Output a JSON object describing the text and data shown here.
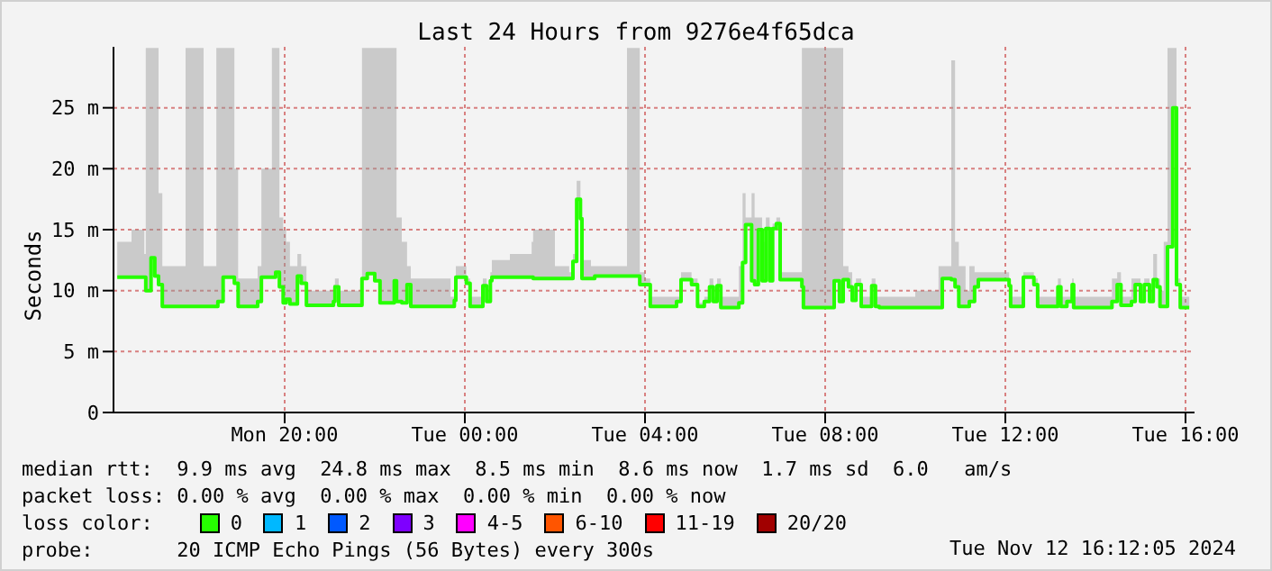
{
  "chart_data": {
    "type": "step",
    "title": "Last 24 Hours from 9276e4f65dca",
    "ylabel": "Seconds",
    "legend_title": "loss color:",
    "legend": "bottom",
    "grid": true,
    "marker": "none",
    "xlim": [
      "2024-11-11T16:12",
      "2024-11-12T16:12"
    ],
    "xticks": [
      {
        "value": "2024-11-11T20:00",
        "label": "Mon 20:00"
      },
      {
        "value": "2024-11-12T00:00",
        "label": "Tue 00:00"
      },
      {
        "value": "2024-11-12T04:00",
        "label": "Tue 04:00"
      },
      {
        "value": "2024-11-12T08:00",
        "label": "Tue 08:00"
      },
      {
        "value": "2024-11-12T12:00",
        "label": "Tue 12:00"
      },
      {
        "value": "2024-11-12T16:00",
        "label": "Tue 16:00"
      }
    ],
    "ylim": [
      0,
      30
    ],
    "yticks": [
      0,
      {
        "value": 5,
        "label": "5 m"
      },
      {
        "value": 10,
        "label": "10 m"
      },
      {
        "value": 15,
        "label": "15 m"
      },
      {
        "value": 20,
        "label": "20 m"
      },
      {
        "value": 25,
        "label": "25 m"
      }
    ],
    "x": [
      "2024-11-11T16:17",
      "2024-11-11T16:36",
      "2024-11-11T16:53",
      "2024-11-11T16:55",
      "2024-11-11T17:02",
      "2024-11-11T17:07",
      "2024-11-11T17:12",
      "2024-11-11T17:17",
      "2024-11-11T17:36",
      "2024-11-11T17:48",
      "2024-11-11T17:58",
      "2024-11-11T18:12",
      "2024-11-11T18:29",
      "2024-11-11T18:31",
      "2024-11-11T18:38",
      "2024-11-11T18:48",
      "2024-11-11T18:53",
      "2024-11-11T18:58",
      "2024-11-11T19:19",
      "2024-11-11T19:24",
      "2024-11-11T19:29",
      "2024-11-11T19:43",
      "2024-11-11T19:48",
      "2024-11-11T19:53",
      "2024-11-11T19:58",
      "2024-11-11T20:02",
      "2024-11-11T20:07",
      "2024-11-11T20:17",
      "2024-11-11T20:22",
      "2024-11-11T20:29",
      "2024-11-11T21:00",
      "2024-11-11T21:05",
      "2024-11-11T21:07",
      "2024-11-11T21:12",
      "2024-11-11T21:36",
      "2024-11-11T21:43",
      "2024-11-11T21:50",
      "2024-11-11T22:00",
      "2024-11-11T22:07",
      "2024-11-11T22:17",
      "2024-11-11T22:26",
      "2024-11-11T22:29",
      "2024-11-11T22:36",
      "2024-11-11T22:43",
      "2024-11-11T22:48",
      "2024-11-11T23:24",
      "2024-11-11T23:41",
      "2024-11-11T23:46",
      "2024-11-11T23:48",
      "2024-11-12T00:00",
      "2024-11-12T00:02",
      "2024-11-12T00:07",
      "2024-11-12T00:19",
      "2024-11-12T00:24",
      "2024-11-12T00:29",
      "2024-11-12T00:34",
      "2024-11-12T00:36",
      "2024-11-12T01:00",
      "2024-11-12T01:29",
      "2024-11-12T01:31",
      "2024-11-12T02:00",
      "2024-11-12T02:19",
      "2024-11-12T02:24",
      "2024-11-12T02:29",
      "2024-11-12T02:34",
      "2024-11-12T02:36",
      "2024-11-12T02:48",
      "2024-11-12T02:53",
      "2024-11-12T03:12",
      "2024-11-12T03:36",
      "2024-11-12T03:43",
      "2024-11-12T03:53",
      "2024-11-12T04:00",
      "2024-11-12T04:07",
      "2024-11-12T04:36",
      "2024-11-12T04:42",
      "2024-11-12T04:48",
      "2024-11-12T04:55",
      "2024-11-12T05:02",
      "2024-11-12T05:10",
      "2024-11-12T05:14",
      "2024-11-12T05:19",
      "2024-11-12T05:26",
      "2024-11-12T05:31",
      "2024-11-12T05:36",
      "2024-11-12T05:41",
      "2024-11-12T06:00",
      "2024-11-12T06:05",
      "2024-11-12T06:10",
      "2024-11-12T06:14",
      "2024-11-12T06:22",
      "2024-11-12T06:26",
      "2024-11-12T06:31",
      "2024-11-12T06:36",
      "2024-11-12T06:41",
      "2024-11-12T06:46",
      "2024-11-12T06:50",
      "2024-11-12T06:55",
      "2024-11-12T07:00",
      "2024-11-12T07:24",
      "2024-11-12T07:29",
      "2024-11-12T07:31",
      "2024-11-12T08:07",
      "2024-11-12T08:12",
      "2024-11-12T08:19",
      "2024-11-12T08:24",
      "2024-11-12T08:31",
      "2024-11-12T08:36",
      "2024-11-12T08:41",
      "2024-11-12T08:48",
      "2024-11-12T08:55",
      "2024-11-12T09:02",
      "2024-11-12T09:07",
      "2024-11-12T09:12",
      "2024-11-12T10:00",
      "2024-11-12T10:31",
      "2024-11-12T10:36",
      "2024-11-12T10:48",
      "2024-11-12T10:53",
      "2024-11-12T10:58",
      "2024-11-12T11:07",
      "2024-11-12T11:12",
      "2024-11-12T11:19",
      "2024-11-12T11:24",
      "2024-11-12T12:00",
      "2024-11-12T12:05",
      "2024-11-12T12:07",
      "2024-11-12T12:17",
      "2024-11-12T12:24",
      "2024-11-12T12:31",
      "2024-11-12T12:38",
      "2024-11-12T12:43",
      "2024-11-12T13:00",
      "2024-11-12T13:10",
      "2024-11-12T13:14",
      "2024-11-12T13:22",
      "2024-11-12T13:29",
      "2024-11-12T13:31",
      "2024-11-12T14:17",
      "2024-11-12T14:22",
      "2024-11-12T14:29",
      "2024-11-12T14:34",
      "2024-11-12T14:41",
      "2024-11-12T14:48",
      "2024-11-12T14:53",
      "2024-11-12T15:00",
      "2024-11-12T15:05",
      "2024-11-12T15:12",
      "2024-11-12T15:17",
      "2024-11-12T15:22",
      "2024-11-12T15:26",
      "2024-11-12T15:31",
      "2024-11-12T15:36",
      "2024-11-12T15:43",
      "2024-11-12T15:48",
      "2024-11-12T15:53",
      "2024-11-12T16:05"
    ],
    "series": [
      {
        "name": "0",
        "color": "#26ff00",
        "values": [
          11.1,
          11.1,
          11.1,
          10.0,
          12.7,
          11.2,
          10.5,
          8.7,
          8.7,
          8.7,
          8.7,
          8.7,
          8.7,
          9.1,
          11.1,
          11.1,
          10.6,
          8.7,
          8.7,
          9.1,
          11.1,
          11.1,
          11.5,
          10.3,
          9.0,
          9.3,
          8.9,
          11.2,
          10.6,
          8.8,
          8.8,
          9.1,
          10.3,
          8.8,
          8.8,
          11.0,
          11.4,
          10.8,
          9.0,
          9.0,
          10.8,
          9.1,
          9.0,
          10.5,
          8.7,
          8.7,
          8.7,
          9.2,
          11.1,
          11.1,
          10.6,
          8.7,
          8.7,
          10.4,
          9.1,
          10.8,
          11.1,
          11.1,
          11.1,
          11.0,
          11.0,
          11.0,
          12.4,
          17.5,
          15.9,
          11.0,
          11.0,
          11.2,
          11.2,
          11.2,
          11.2,
          10.5,
          10.5,
          8.7,
          8.7,
          9.1,
          10.9,
          10.9,
          10.5,
          8.7,
          8.7,
          9.1,
          10.3,
          9.1,
          10.4,
          8.6,
          8.6,
          9.0,
          12.3,
          15.4,
          10.8,
          10.5,
          15.0,
          10.8,
          15.1,
          10.8,
          15.1,
          15.5,
          10.9,
          10.9,
          10.3,
          8.6,
          8.6,
          10.8,
          9.1,
          10.9,
          10.3,
          9.2,
          10.5,
          8.7,
          8.7,
          10.4,
          8.7,
          8.6,
          8.6,
          8.6,
          11.0,
          10.9,
          10.3,
          8.7,
          8.7,
          9.1,
          10.3,
          10.9,
          10.9,
          10.4,
          8.7,
          8.7,
          11.1,
          11.1,
          10.5,
          8.7,
          8.7,
          10.3,
          8.7,
          9.1,
          10.5,
          8.6,
          8.6,
          9.1,
          10.5,
          8.8,
          8.8,
          9.1,
          10.5,
          9.1,
          10.5,
          9.1,
          10.9,
          10.3,
          8.7,
          8.7,
          13.6,
          25.0,
          10.5,
          8.6,
          8.6
        ],
        "lower": [
          11.1,
          11.1,
          11.1,
          10.0,
          12.7,
          11.2,
          10.5,
          8.7,
          8.7,
          8.7,
          8.7,
          8.7,
          8.7,
          9.1,
          11.1,
          11.1,
          10.6,
          8.7,
          8.7,
          9.1,
          11.1,
          11.1,
          11.5,
          10.3,
          9.0,
          9.3,
          8.9,
          11.2,
          10.6,
          8.8,
          8.8,
          9.1,
          10.3,
          8.8,
          8.8,
          11.0,
          11.4,
          10.8,
          9.0,
          9.0,
          10.8,
          9.1,
          9.0,
          10.5,
          8.7,
          8.7,
          8.7,
          9.2,
          11.1,
          11.1,
          10.6,
          8.7,
          8.7,
          10.4,
          9.1,
          10.8,
          11.1,
          11.1,
          11.1,
          11.0,
          11.0,
          11.0,
          12.4,
          17.5,
          15.9,
          11.0,
          11.0,
          11.2,
          11.2,
          11.2,
          11.2,
          10.5,
          10.5,
          8.7,
          8.7,
          9.1,
          10.9,
          10.9,
          10.5,
          8.7,
          8.7,
          9.1,
          10.3,
          9.1,
          10.4,
          8.6,
          8.6,
          9.0,
          12.3,
          15.4,
          10.8,
          10.5,
          15.0,
          10.8,
          15.1,
          10.8,
          15.1,
          15.5,
          10.9,
          10.9,
          10.3,
          8.6,
          8.6,
          10.8,
          9.1,
          10.9,
          10.3,
          9.2,
          10.5,
          8.7,
          8.7,
          10.4,
          8.7,
          8.6,
          8.6,
          8.6,
          11.0,
          10.9,
          10.3,
          8.7,
          8.7,
          9.1,
          10.3,
          10.9,
          10.9,
          10.4,
          8.7,
          8.7,
          11.1,
          11.1,
          10.5,
          8.7,
          8.7,
          10.3,
          8.7,
          9.1,
          10.5,
          8.6,
          8.6,
          9.1,
          10.5,
          8.8,
          8.8,
          9.1,
          10.5,
          9.1,
          10.5,
          9.1,
          10.9,
          10.3,
          8.7,
          8.7,
          13.6,
          25.0,
          10.5,
          8.6,
          8.6
        ],
        "upper": [
          14,
          15,
          13,
          29.9,
          29.9,
          29.9,
          18,
          12,
          12,
          29.9,
          29.9,
          12,
          29.9,
          29.9,
          29.9,
          29.9,
          20,
          11,
          11,
          12,
          20,
          29.9,
          29.9,
          16,
          15,
          14,
          12,
          13,
          12,
          10,
          10,
          10.5,
          11,
          10,
          10,
          29.9,
          29.9,
          29.9,
          29.9,
          29.9,
          29.9,
          16,
          14,
          12,
          11,
          11,
          9.5,
          10,
          12,
          12,
          11,
          9.5,
          9.5,
          11,
          10,
          11.5,
          12.5,
          13,
          14,
          15,
          12,
          11.5,
          13,
          19,
          17,
          12.5,
          12,
          12,
          12,
          29.9,
          29.9,
          11.5,
          11,
          9.5,
          9.5,
          9.5,
          11.5,
          11.5,
          11,
          9,
          9,
          9.5,
          11,
          9.5,
          11,
          9.5,
          9.5,
          12,
          18,
          16,
          18,
          16,
          16,
          14,
          16,
          11.5,
          15.5,
          16,
          11.5,
          11.5,
          29.9,
          29.9,
          29.9,
          29.9,
          29.9,
          12,
          11.5,
          10,
          11,
          9.5,
          9.5,
          11,
          9.5,
          9.5,
          10,
          12,
          12,
          28.9,
          14,
          12,
          10,
          12,
          11.5,
          11.5,
          11.5,
          11,
          9.5,
          9.5,
          11.5,
          11.5,
          11,
          9.5,
          9.5,
          11,
          9.5,
          9.5,
          11,
          9.5,
          9.5,
          11,
          11.5,
          9.5,
          9.5,
          11,
          11,
          10,
          11,
          10,
          13,
          11,
          10,
          14,
          29.9,
          29.9,
          11,
          9.5,
          9
        ]
      },
      {
        "name": "1",
        "color": "#00b8ff",
        "values": [
          null,
          null,
          null,
          null,
          null,
          null,
          null,
          null,
          null,
          null,
          null,
          null,
          null,
          null,
          null,
          null,
          null,
          null,
          null,
          null,
          null,
          null,
          null,
          null,
          null,
          null,
          null,
          null,
          null,
          null,
          null,
          null,
          null,
          null,
          null,
          null,
          null,
          null,
          null,
          null,
          null,
          null,
          null,
          null,
          null,
          null,
          null,
          null,
          null,
          null,
          null,
          null,
          null,
          null,
          null,
          null,
          null,
          null,
          null,
          null,
          null,
          null,
          null,
          null,
          null,
          null,
          null,
          null,
          null,
          null,
          null,
          null,
          null,
          null,
          null,
          null,
          null,
          null,
          null,
          null,
          null,
          null,
          null,
          null,
          null,
          null,
          null,
          null,
          null,
          null,
          null,
          null,
          null,
          null,
          null,
          null,
          null,
          null,
          null,
          null,
          null,
          null,
          null,
          null,
          null,
          null,
          null,
          null,
          null,
          null,
          null,
          null,
          null,
          null,
          null,
          null,
          null,
          null,
          null,
          null,
          null,
          null,
          null,
          null,
          null,
          null,
          null,
          null,
          null,
          null,
          null,
          null,
          null,
          null,
          null,
          null,
          null,
          null,
          null,
          null,
          null,
          null,
          null,
          null,
          null,
          null,
          null,
          null,
          null,
          null,
          null,
          null,
          null,
          null,
          null,
          null,
          null
        ]
      },
      {
        "name": "2",
        "color": "#0059ff",
        "values": [
          null,
          null,
          null,
          null,
          null,
          null,
          null,
          null,
          null,
          null,
          null,
          null,
          null,
          null,
          null,
          null,
          null,
          null,
          null,
          null,
          null,
          null,
          null,
          null,
          null,
          null,
          null,
          null,
          null,
          null,
          null,
          null,
          null,
          null,
          null,
          null,
          null,
          null,
          null,
          null,
          null,
          null,
          null,
          null,
          null,
          null,
          null,
          null,
          null,
          null,
          null,
          null,
          null,
          null,
          null,
          null,
          null,
          null,
          null,
          null,
          null,
          null,
          null,
          null,
          null,
          null,
          null,
          null,
          null,
          null,
          null,
          null,
          null,
          null,
          null,
          null,
          null,
          null,
          null,
          null,
          null,
          null,
          null,
          null,
          null,
          null,
          null,
          null,
          null,
          null,
          null,
          null,
          null,
          null,
          null,
          null,
          null,
          null,
          null,
          null,
          null,
          null,
          null,
          null,
          null,
          null,
          null,
          null,
          null,
          null,
          null,
          null,
          null,
          null,
          null,
          null,
          null,
          null,
          null,
          null,
          null,
          null,
          null,
          null,
          null,
          null,
          null,
          null,
          null,
          null,
          null,
          null,
          null,
          null,
          null,
          null,
          null,
          null,
          null,
          null,
          null,
          null,
          null,
          null,
          null,
          null,
          null,
          null,
          null,
          null,
          null,
          null,
          null,
          null,
          null,
          null,
          null
        ]
      },
      {
        "name": "3",
        "color": "#7e00ff",
        "values": [
          null,
          null,
          null,
          null,
          null,
          null,
          null,
          null,
          null,
          null,
          null,
          null,
          null,
          null,
          null,
          null,
          null,
          null,
          null,
          null,
          null,
          null,
          null,
          null,
          null,
          null,
          null,
          null,
          null,
          null,
          null,
          null,
          null,
          null,
          null,
          null,
          null,
          null,
          null,
          null,
          null,
          null,
          null,
          null,
          null,
          null,
          null,
          null,
          null,
          null,
          null,
          null,
          null,
          null,
          null,
          null,
          null,
          null,
          null,
          null,
          null,
          null,
          null,
          null,
          null,
          null,
          null,
          null,
          null,
          null,
          null,
          null,
          null,
          null,
          null,
          null,
          null,
          null,
          null,
          null,
          null,
          null,
          null,
          null,
          null,
          null,
          null,
          null,
          null,
          null,
          null,
          null,
          null,
          null,
          null,
          null,
          null,
          null,
          null,
          null,
          null,
          null,
          null,
          null,
          null,
          null,
          null,
          null,
          null,
          null,
          null,
          null,
          null,
          null,
          null,
          null,
          null,
          null,
          null,
          null,
          null,
          null,
          null,
          null,
          null,
          null,
          null,
          null,
          null,
          null,
          null,
          null,
          null,
          null,
          null,
          null,
          null,
          null,
          null,
          null,
          null,
          null,
          null,
          null,
          null,
          null,
          null,
          null,
          null,
          null,
          null,
          null,
          null,
          null,
          null,
          null,
          null
        ]
      },
      {
        "name": "4-5",
        "color": "#ff00ff",
        "values": [
          null,
          null,
          null,
          null,
          null,
          null,
          null,
          null,
          null,
          null,
          null,
          null,
          null,
          null,
          null,
          null,
          null,
          null,
          null,
          null,
          null,
          null,
          null,
          null,
          null,
          null,
          null,
          null,
          null,
          null,
          null,
          null,
          null,
          null,
          null,
          null,
          null,
          null,
          null,
          null,
          null,
          null,
          null,
          null,
          null,
          null,
          null,
          null,
          null,
          null,
          null,
          null,
          null,
          null,
          null,
          null,
          null,
          null,
          null,
          null,
          null,
          null,
          null,
          null,
          null,
          null,
          null,
          null,
          null,
          null,
          null,
          null,
          null,
          null,
          null,
          null,
          null,
          null,
          null,
          null,
          null,
          null,
          null,
          null,
          null,
          null,
          null,
          null,
          null,
          null,
          null,
          null,
          null,
          null,
          null,
          null,
          null,
          null,
          null,
          null,
          null,
          null,
          null,
          null,
          null,
          null,
          null,
          null,
          null,
          null,
          null,
          null,
          null,
          null,
          null,
          null,
          null,
          null,
          null,
          null,
          null,
          null,
          null,
          null,
          null,
          null,
          null,
          null,
          null,
          null,
          null,
          null,
          null,
          null,
          null,
          null,
          null,
          null,
          null,
          null,
          null,
          null,
          null,
          null,
          null,
          null,
          null,
          null,
          null,
          null,
          null,
          null,
          null,
          null,
          null,
          null,
          null
        ]
      },
      {
        "name": "6-10",
        "color": "#ff5500",
        "values": [
          null,
          null,
          null,
          null,
          null,
          null,
          null,
          null,
          null,
          null,
          null,
          null,
          null,
          null,
          null,
          null,
          null,
          null,
          null,
          null,
          null,
          null,
          null,
          null,
          null,
          null,
          null,
          null,
          null,
          null,
          null,
          null,
          null,
          null,
          null,
          null,
          null,
          null,
          null,
          null,
          null,
          null,
          null,
          null,
          null,
          null,
          null,
          null,
          null,
          null,
          null,
          null,
          null,
          null,
          null,
          null,
          null,
          null,
          null,
          null,
          null,
          null,
          null,
          null,
          null,
          null,
          null,
          null,
          null,
          null,
          null,
          null,
          null,
          null,
          null,
          null,
          null,
          null,
          null,
          null,
          null,
          null,
          null,
          null,
          null,
          null,
          null,
          null,
          null,
          null,
          null,
          null,
          null,
          null,
          null,
          null,
          null,
          null,
          null,
          null,
          null,
          null,
          null,
          null,
          null,
          null,
          null,
          null,
          null,
          null,
          null,
          null,
          null,
          null,
          null,
          null,
          null,
          null,
          null,
          null,
          null,
          null,
          null,
          null,
          null,
          null,
          null,
          null,
          null,
          null,
          null,
          null,
          null,
          null,
          null,
          null,
          null,
          null,
          null,
          null,
          null,
          null,
          null,
          null,
          null,
          null,
          null,
          null,
          null,
          null,
          null,
          null,
          null,
          null,
          null,
          null,
          null
        ]
      },
      {
        "name": "11-19",
        "color": "#ff0000",
        "values": [
          null,
          null,
          null,
          null,
          null,
          null,
          null,
          null,
          null,
          null,
          null,
          null,
          null,
          null,
          null,
          null,
          null,
          null,
          null,
          null,
          null,
          null,
          null,
          null,
          null,
          null,
          null,
          null,
          null,
          null,
          null,
          null,
          null,
          null,
          null,
          null,
          null,
          null,
          null,
          null,
          null,
          null,
          null,
          null,
          null,
          null,
          null,
          null,
          null,
          null,
          null,
          null,
          null,
          null,
          null,
          null,
          null,
          null,
          null,
          null,
          null,
          null,
          null,
          null,
          null,
          null,
          null,
          null,
          null,
          null,
          null,
          null,
          null,
          null,
          null,
          null,
          null,
          null,
          null,
          null,
          null,
          null,
          null,
          null,
          null,
          null,
          null,
          null,
          null,
          null,
          null,
          null,
          null,
          null,
          null,
          null,
          null,
          null,
          null,
          null,
          null,
          null,
          null,
          null,
          null,
          null,
          null,
          null,
          null,
          null,
          null,
          null,
          null,
          null,
          null,
          null,
          null,
          null,
          null,
          null,
          null,
          null,
          null,
          null,
          null,
          null,
          null,
          null,
          null,
          null,
          null,
          null,
          null,
          null,
          null,
          null,
          null,
          null,
          null,
          null,
          null,
          null,
          null,
          null,
          null,
          null,
          null,
          null,
          null,
          null,
          null,
          null,
          null,
          null,
          null,
          null,
          null
        ]
      },
      {
        "name": "20/20",
        "color": "#a10000",
        "values": [
          null,
          null,
          null,
          null,
          null,
          null,
          null,
          null,
          null,
          null,
          null,
          null,
          null,
          null,
          null,
          null,
          null,
          null,
          null,
          null,
          null,
          null,
          null,
          null,
          null,
          null,
          null,
          null,
          null,
          null,
          null,
          null,
          null,
          null,
          null,
          null,
          null,
          null,
          null,
          null,
          null,
          null,
          null,
          null,
          null,
          null,
          null,
          null,
          null,
          null,
          null,
          null,
          null,
          null,
          null,
          null,
          null,
          null,
          null,
          null,
          null,
          null,
          null,
          null,
          null,
          null,
          null,
          null,
          null,
          null,
          null,
          null,
          null,
          null,
          null,
          null,
          null,
          null,
          null,
          null,
          null,
          null,
          null,
          null,
          null,
          null,
          null,
          null,
          null,
          null,
          null,
          null,
          null,
          null,
          null,
          null,
          null,
          null,
          null,
          null,
          null,
          null,
          null,
          null,
          null,
          null,
          null,
          null,
          null,
          null,
          null,
          null,
          null,
          null,
          null,
          null,
          null,
          null,
          null,
          null,
          null,
          null,
          null,
          null,
          null,
          null,
          null,
          null,
          null,
          null,
          null,
          null,
          null,
          null,
          null,
          null,
          null,
          null,
          null,
          null,
          null,
          null,
          null,
          null,
          null,
          null,
          null,
          null,
          null,
          null,
          null,
          null,
          null,
          null,
          null,
          null,
          null
        ]
      }
    ],
    "annotations": [
      "median rtt:  9.9 ms avg  24.8 ms max  8.5 ms min  8.6 ms now  1.7 ms sd  6.0   am/s",
      "packet loss: 0.00 % avg  0.00 % max  0.00 % min  0.00 % now",
      "probe:       20 ICMP Echo Pings (56 Bytes) every 300s",
      "Tue Nov 12 16:12:05 2024"
    ]
  }
}
